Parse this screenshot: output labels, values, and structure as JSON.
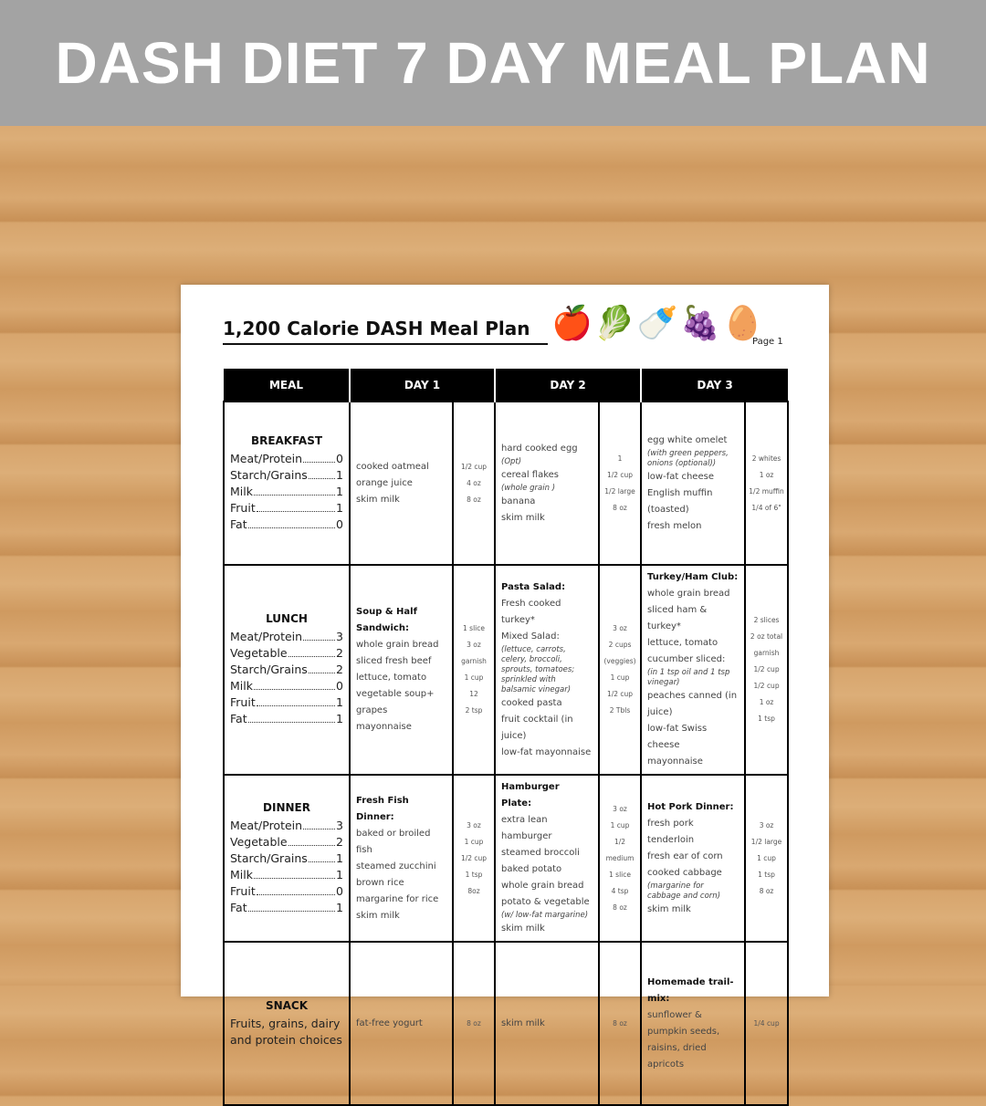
{
  "banner": {
    "title": "DASH DIET 7 DAY MEAL PLAN"
  },
  "document": {
    "title": "1,200 Calorie DASH Meal Plan",
    "page": "Page 1",
    "icons": [
      "apple-icon",
      "lettuce-icon",
      "milk-bottle-icon",
      "grapes-icon",
      "egg-icon"
    ]
  },
  "table": {
    "headers": [
      "MEAL",
      "DAY 1",
      "DAY 2",
      "DAY 3"
    ],
    "rows": [
      {
        "meal": "BREAKFAST",
        "items": [
          {
            "name": "Meat/Protein",
            "value": "0"
          },
          {
            "name": "Starch/Grains",
            "value": "1"
          },
          {
            "name": "Milk",
            "value": "1"
          },
          {
            "name": "Fruit",
            "value": "1"
          },
          {
            "name": "Fat",
            "value": "0"
          }
        ],
        "days": [
          {
            "food": [
              {
                "t": "cooked oatmeal"
              },
              {
                "t": "orange juice"
              },
              {
                "t": "skim milk"
              }
            ],
            "amounts": [
              "1/2 cup",
              "4 oz",
              "8 oz"
            ]
          },
          {
            "food": [
              {
                "t": "hard cooked egg"
              },
              {
                "t": "(Opt)",
                "s": "note"
              },
              {
                "t": "cereal flakes"
              },
              {
                "t": "(whole grain )",
                "s": "note"
              },
              {
                "t": "banana"
              },
              {
                "t": "skim milk"
              }
            ],
            "amounts": [
              "1",
              "1/2 cup",
              "1/2 large",
              "8 oz"
            ]
          },
          {
            "food": [
              {
                "t": "egg white omelet"
              },
              {
                "t": "(with green peppers, onions (optional))",
                "s": "note"
              },
              {
                "t": "low-fat cheese"
              },
              {
                "t": "English muffin (toasted)"
              },
              {
                "t": "fresh melon"
              }
            ],
            "amounts": [
              "2 whites",
              "1 oz",
              "1/2 muffin",
              "1/4 of 6\""
            ]
          }
        ]
      },
      {
        "meal": "LUNCH",
        "items": [
          {
            "name": "Meat/Protein",
            "value": "3"
          },
          {
            "name": "Vegetable",
            "value": "2"
          },
          {
            "name": "Starch/Grains",
            "value": "2"
          },
          {
            "name": "Milk",
            "value": "0"
          },
          {
            "name": "Fruit",
            "value": "1"
          },
          {
            "name": "Fat",
            "value": "1"
          }
        ],
        "days": [
          {
            "food": [
              {
                "t": "Soup & Half Sandwich:",
                "s": "bold"
              },
              {
                "t": "whole grain bread"
              },
              {
                "t": "sliced fresh beef"
              },
              {
                "t": "lettuce, tomato"
              },
              {
                "t": "vegetable soup+"
              },
              {
                "t": "grapes"
              },
              {
                "t": "mayonnaise"
              }
            ],
            "amounts": [
              "1 slice",
              "3 oz",
              "garnish",
              "1 cup",
              "12",
              "2 tsp"
            ]
          },
          {
            "food": [
              {
                "t": "Pasta Salad:",
                "s": "bold"
              },
              {
                "t": "Fresh cooked turkey*"
              },
              {
                "t": "Mixed Salad:"
              },
              {
                "t": "(lettuce, carrots, celery, broccoli, sprouts, tomatoes; sprinkled with balsamic vinegar)",
                "s": "note"
              },
              {
                "t": "cooked pasta"
              },
              {
                "t": "fruit cocktail (in juice)"
              },
              {
                "t": "low-fat mayonnaise"
              }
            ],
            "amounts": [
              "3 oz",
              "2 cups (veggies)",
              "1 cup",
              "1/2 cup",
              "2 Tbls"
            ]
          },
          {
            "food": [
              {
                "t": "Turkey/Ham Club:",
                "s": "bold"
              },
              {
                "t": "whole grain bread"
              },
              {
                "t": "sliced ham & turkey*"
              },
              {
                "t": "lettuce, tomato"
              },
              {
                "t": "cucumber sliced:"
              },
              {
                "t": "(in 1 tsp oil and 1 tsp vinegar)",
                "s": "note"
              },
              {
                "t": "peaches canned (in juice)"
              },
              {
                "t": "low-fat Swiss cheese"
              },
              {
                "t": "mayonnaise"
              }
            ],
            "amounts": [
              "2 slices",
              "2 oz total garnish",
              "1/2 cup",
              "1/2 cup",
              "1 oz",
              "1 tsp"
            ]
          }
        ]
      },
      {
        "meal": "DINNER",
        "items": [
          {
            "name": "Meat/Protein",
            "value": "3"
          },
          {
            "name": "Vegetable",
            "value": "2"
          },
          {
            "name": "Starch/Grains",
            "value": "1"
          },
          {
            "name": "Milk",
            "value": "1"
          },
          {
            "name": "Fruit",
            "value": "0"
          },
          {
            "name": "Fat",
            "value": "1"
          }
        ],
        "days": [
          {
            "food": [
              {
                "t": "Fresh Fish Dinner:",
                "s": "bold"
              },
              {
                "t": "baked or broiled fish"
              },
              {
                "t": "steamed zucchini"
              },
              {
                "t": "brown rice"
              },
              {
                "t": "margarine for rice"
              },
              {
                "t": "skim milk"
              }
            ],
            "amounts": [
              "3 oz",
              "1 cup",
              "1/2 cup",
              "1 tsp",
              "8oz"
            ]
          },
          {
            "food": [
              {
                "t": "Hamburger Plate:",
                "s": "bold"
              },
              {
                "t": "extra lean hamburger"
              },
              {
                "t": "steamed broccoli"
              },
              {
                "t": "baked potato"
              },
              {
                "t": "whole grain bread"
              },
              {
                "t": "potato & vegetable"
              },
              {
                "t": "(w/ low-fat margarine)",
                "s": "note"
              },
              {
                "t": "skim milk"
              }
            ],
            "amounts": [
              "3 oz",
              "1 cup",
              "1/2 medium",
              "1 slice",
              "4 tsp",
              "8 oz"
            ]
          },
          {
            "food": [
              {
                "t": "Hot Pork Dinner:",
                "s": "bold"
              },
              {
                "t": "fresh pork tenderloin"
              },
              {
                "t": "fresh ear of corn"
              },
              {
                "t": "cooked cabbage"
              },
              {
                "t": "(margarine for cabbage and corn)",
                "s": "note"
              },
              {
                "t": "skim milk"
              }
            ],
            "amounts": [
              "3 oz",
              "1/2 large",
              "1 cup",
              "1 tsp",
              "8 oz"
            ]
          }
        ]
      },
      {
        "meal": "SNACK",
        "desc": "Fruits, grains, dairy and protein choices",
        "days": [
          {
            "food": [
              {
                "t": "fat-free yogurt"
              }
            ],
            "amounts": [
              "8 oz"
            ]
          },
          {
            "food": [
              {
                "t": "skim milk"
              }
            ],
            "amounts": [
              "8 oz"
            ]
          },
          {
            "food": [
              {
                "t": "Homemade trail-mix:",
                "s": "bold"
              },
              {
                "t": "sunflower & pumpkin seeds, raisins, dried apricots"
              }
            ],
            "amounts": [
              "1/4 cup"
            ]
          }
        ]
      }
    ]
  }
}
